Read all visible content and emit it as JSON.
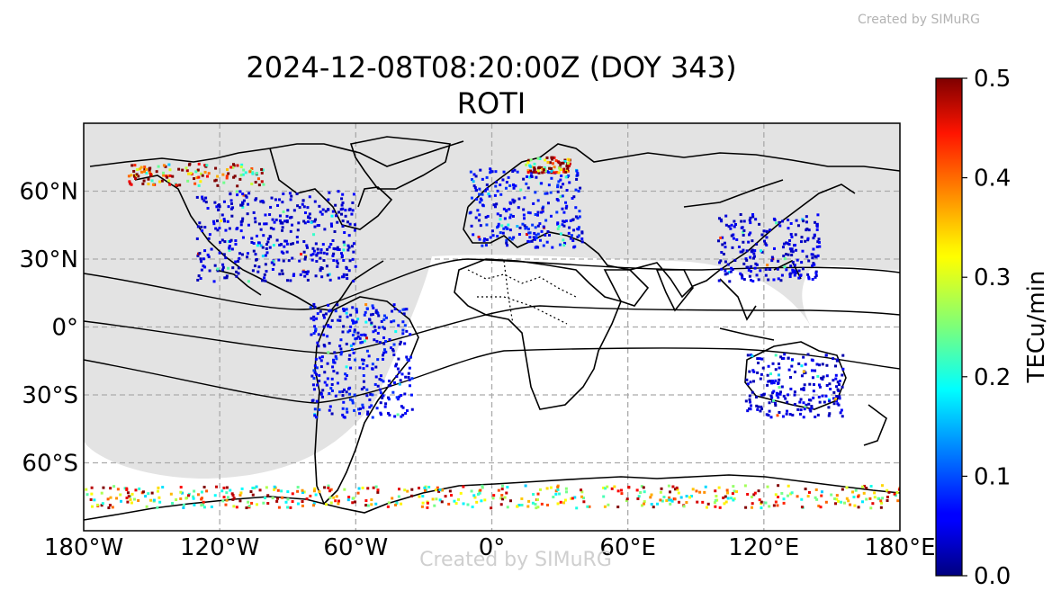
{
  "watermark_top": "Created by SIMuRG",
  "watermark_bottom": "Created by SIMuRG",
  "title_line1": "2024-12-08T08:20:00Z (DOY 343)",
  "title_line2": "ROTI",
  "map": {
    "projection": "PlateCarree",
    "lon_range": [
      -180,
      180
    ],
    "lat_range": [
      -90,
      90
    ],
    "grid": true,
    "x_ticks": [
      {
        "value": -180,
        "label": "180°W"
      },
      {
        "value": -120,
        "label": "120°W"
      },
      {
        "value": -60,
        "label": "60°W"
      },
      {
        "value": 0,
        "label": "0°"
      },
      {
        "value": 60,
        "label": "60°E"
      },
      {
        "value": 120,
        "label": "120°E"
      },
      {
        "value": 180,
        "label": "180°E"
      }
    ],
    "y_ticks": [
      {
        "value": 60,
        "label": "60°N"
      },
      {
        "value": 30,
        "label": "30°N"
      },
      {
        "value": 0,
        "label": "0°"
      },
      {
        "value": -30,
        "label": "30°S"
      },
      {
        "value": -60,
        "label": "60°S"
      }
    ],
    "night_shading_color": "#e3e3e3",
    "coastline_color": "#000000"
  },
  "colorbar": {
    "label": "TECu/min",
    "min": 0.0,
    "max": 0.5,
    "colormap": "jet",
    "ticks": [
      {
        "value": 0.0,
        "label": "0.0"
      },
      {
        "value": 0.1,
        "label": "0.1"
      },
      {
        "value": 0.2,
        "label": "0.2"
      },
      {
        "value": 0.3,
        "label": "0.3"
      },
      {
        "value": 0.4,
        "label": "0.4"
      },
      {
        "value": 0.5,
        "label": "0.5"
      }
    ]
  },
  "chart_data": {
    "type": "scatter",
    "title": "2024-12-08T08:20:00Z (DOY 343)\nROTI",
    "xlabel": "",
    "ylabel": "",
    "xlim": [
      -180,
      180
    ],
    "ylim": [
      -90,
      90
    ],
    "value_unit": "TECu/min",
    "value_range": [
      0.0,
      0.5
    ],
    "clusters": [
      {
        "region": "North America",
        "lon": [
          -130,
          -60
        ],
        "lat": [
          20,
          60
        ],
        "typical_roti": 0.05
      },
      {
        "region": "Alaska / Canada auroral",
        "lon": [
          -160,
          -100
        ],
        "lat": [
          62,
          72
        ],
        "typical_roti": 0.5
      },
      {
        "region": "Europe",
        "lon": [
          -10,
          40
        ],
        "lat": [
          35,
          70
        ],
        "typical_roti": 0.07
      },
      {
        "region": "Scandinavia auroral",
        "lon": [
          15,
          35
        ],
        "lat": [
          68,
          75
        ],
        "typical_roti": 0.5
      },
      {
        "region": "South America",
        "lon": [
          -80,
          -35
        ],
        "lat": [
          -40,
          10
        ],
        "typical_roti": 0.07
      },
      {
        "region": "Australia",
        "lon": [
          112,
          155
        ],
        "lat": [
          -40,
          -12
        ],
        "typical_roti": 0.05
      },
      {
        "region": "East Asia",
        "lon": [
          100,
          145
        ],
        "lat": [
          20,
          50
        ],
        "typical_roti": 0.05
      },
      {
        "region": "Antarctica",
        "lon": [
          -180,
          180
        ],
        "lat": [
          -80,
          -70
        ],
        "typical_roti": 0.4
      }
    ]
  }
}
